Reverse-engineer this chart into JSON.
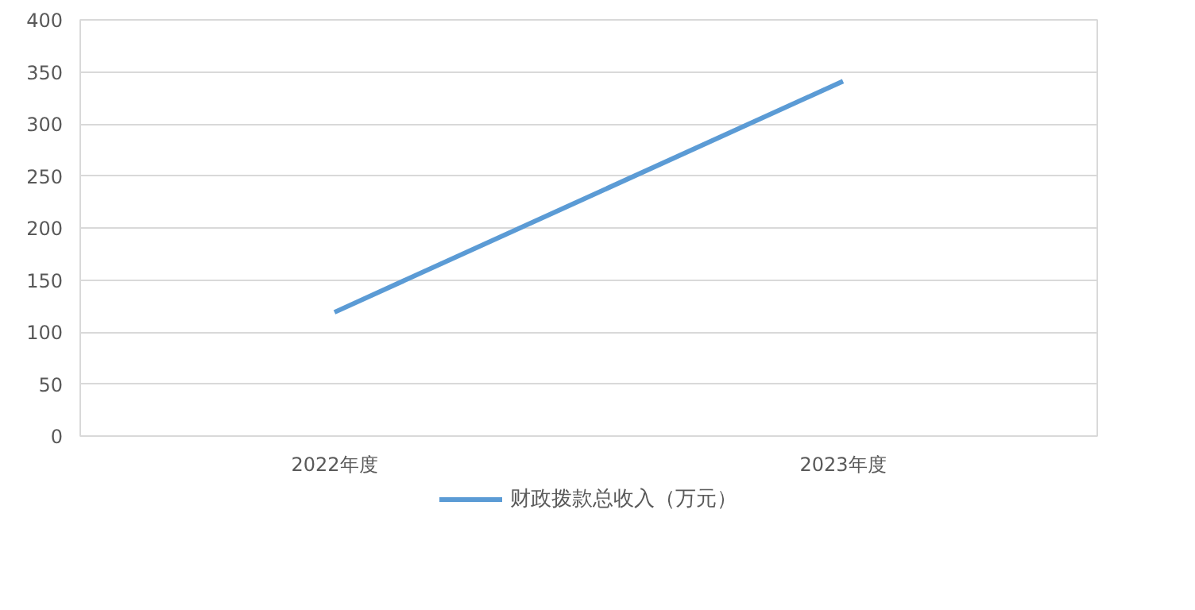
{
  "chart_data": {
    "type": "line",
    "categories": [
      "2022年度",
      "2023年度"
    ],
    "series": [
      {
        "name": "财政拨款总收入（万元）",
        "color": "#5b9bd5",
        "values": [
          119,
          341
        ]
      }
    ],
    "ylim": [
      0,
      400
    ],
    "yticks": [
      0,
      50,
      100,
      150,
      200,
      250,
      300,
      350,
      400
    ],
    "grid": "y",
    "legend": "bottom",
    "marker": "none",
    "line_style": "solid"
  }
}
